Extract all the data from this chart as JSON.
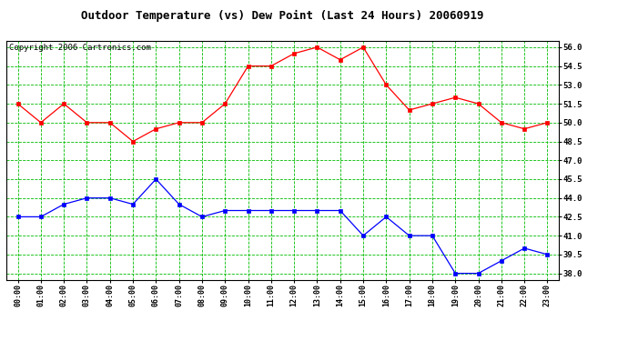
{
  "title": "Outdoor Temperature (vs) Dew Point (Last 24 Hours) 20060919",
  "copyright": "Copyright 2006 Cartronics.com",
  "hours": [
    "00:00",
    "01:00",
    "02:00",
    "03:00",
    "04:00",
    "05:00",
    "06:00",
    "07:00",
    "08:00",
    "09:00",
    "10:00",
    "11:00",
    "12:00",
    "13:00",
    "14:00",
    "15:00",
    "16:00",
    "17:00",
    "18:00",
    "19:00",
    "20:00",
    "21:00",
    "22:00",
    "23:00"
  ],
  "temp": [
    51.5,
    50.0,
    51.5,
    50.0,
    50.0,
    48.5,
    49.5,
    50.0,
    50.0,
    51.5,
    54.5,
    54.5,
    55.5,
    56.0,
    55.0,
    56.0,
    53.0,
    51.0,
    51.5,
    52.0,
    51.5,
    50.0,
    49.5,
    50.0
  ],
  "dew": [
    42.5,
    42.5,
    43.5,
    44.0,
    44.0,
    43.5,
    45.5,
    43.5,
    42.5,
    43.0,
    43.0,
    43.0,
    43.0,
    43.0,
    43.0,
    41.0,
    42.5,
    41.0,
    41.0,
    38.0,
    38.0,
    39.0,
    40.0,
    39.5
  ],
  "ylim": [
    37.5,
    56.5
  ],
  "yticks": [
    38.0,
    39.5,
    41.0,
    42.5,
    44.0,
    45.5,
    47.0,
    48.5,
    50.0,
    51.5,
    53.0,
    54.5,
    56.0
  ],
  "temp_color": "#ff0000",
  "dew_color": "#0000ff",
  "marker": "s",
  "marker_size": 2.5,
  "grid_color": "#00bb00",
  "bg_color": "#ffffff",
  "plot_bg": "#ffffff",
  "title_fontsize": 9,
  "copyright_fontsize": 6.5
}
